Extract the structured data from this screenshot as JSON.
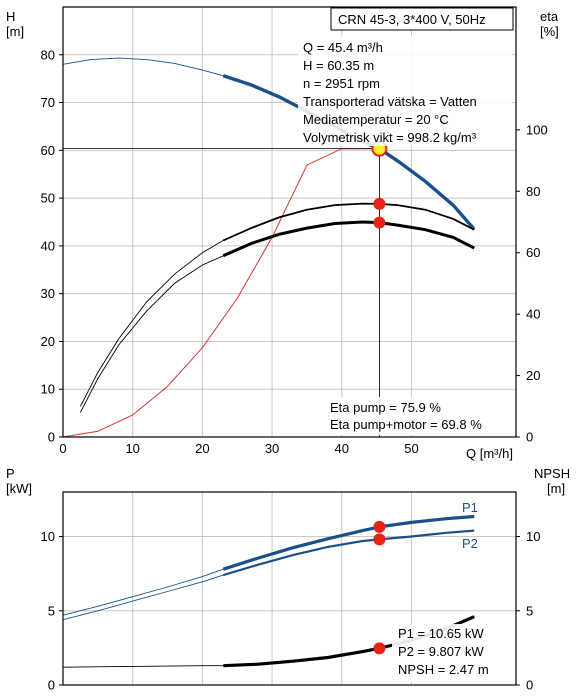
{
  "colors": {
    "head_curve": "#1a4f8a",
    "eta_curve": "#000000",
    "npsh_curve": "#000000",
    "system_curve": "#d9342b",
    "operating_point": "#e8231a",
    "operating_point_fill": "#ffee22",
    "grid": "#c8c8c8"
  },
  "chart_data": [
    {
      "type": "line",
      "title": "CRN 45-3, 3*400 V, 50Hz",
      "xlabel": "Q [m³/h]",
      "ylabel_left": [
        "H",
        "[m]"
      ],
      "ylabel_right": [
        "eta",
        "[%]"
      ],
      "xlim": [
        0,
        65
      ],
      "ylim_left": [
        0,
        90
      ],
      "ylim_right": [
        0,
        140
      ],
      "x_ticks": [
        0,
        10,
        20,
        30,
        40,
        50
      ],
      "y_left_ticks": [
        0,
        10,
        20,
        30,
        40,
        50,
        60,
        70,
        80
      ],
      "y_right_ticks": [
        0,
        20,
        40,
        60,
        80,
        100
      ],
      "grid": true,
      "info_lines": [
        "Q = 45.4 m³/h",
        "H = 60.35 m",
        "n = 2951 rpm",
        "Transporterad vätska = Vatten",
        "Mediatemperatur = 20 °C",
        "Volymetrisk vikt = 998.2 kg/m³"
      ],
      "efficiency_labels": [
        "Eta pump = 75.9 %",
        "Eta pump+motor = 69.8 %"
      ],
      "head_curve": {
        "axis": "left",
        "x": [
          0,
          4,
          8,
          12,
          16,
          20,
          23,
          27,
          31,
          35,
          39,
          43,
          45.4,
          48,
          52,
          56,
          59
        ],
        "y": [
          78,
          79,
          79.3,
          79,
          78.2,
          76.8,
          75.6,
          73.7,
          71.2,
          68.2,
          65,
          61.8,
          60.35,
          57.8,
          53.5,
          48.5,
          43.5
        ],
        "operating_range": [
          23,
          59
        ]
      },
      "eta_pump_curve": {
        "axis": "right",
        "x": [
          2.5,
          5,
          8,
          12,
          16,
          20,
          23,
          27,
          31,
          35,
          39,
          43,
          45.4,
          48,
          52,
          56,
          59
        ],
        "y": [
          10,
          21,
          32,
          44,
          53,
          60,
          64,
          68,
          71.5,
          74,
          75.5,
          76,
          75.9,
          75.5,
          74,
          71,
          67.5
        ],
        "operating_range": [
          23,
          59
        ]
      },
      "eta_total_curve": {
        "axis": "right",
        "x": [
          2.5,
          5,
          8,
          12,
          16,
          20,
          23,
          27,
          31,
          35,
          39,
          43,
          45.4,
          48,
          52,
          56,
          59
        ],
        "y": [
          8,
          19,
          30,
          41,
          50,
          56,
          59,
          63,
          66,
          68,
          69.5,
          70,
          69.8,
          69,
          67.5,
          65,
          61.5
        ],
        "operating_range": [
          23,
          59
        ]
      },
      "system_curve": {
        "axis": "left",
        "x": [
          0,
          5,
          10,
          15,
          20,
          25,
          30,
          35,
          40,
          45.4
        ],
        "y": [
          0,
          1.2,
          4.6,
          10.6,
          18.7,
          29,
          41.8,
          56.9,
          74.3,
          95.4
        ],
        "ylim_clip": [
          0,
          60.35
        ]
      },
      "operating_point": {
        "q": 45.4,
        "h": 60.35,
        "eta_pump": 75.9,
        "eta_total": 69.8
      }
    },
    {
      "type": "line",
      "xlabel": "",
      "ylabel_left": [
        "P",
        "[kW]"
      ],
      "ylabel_right": [
        "NPSH",
        "[m]"
      ],
      "xlim": [
        0,
        65
      ],
      "ylim_left": [
        0,
        13
      ],
      "ylim_right": [
        0,
        13
      ],
      "y_left_ticks": [
        0,
        5,
        10
      ],
      "y_right_ticks": [
        0,
        5,
        10
      ],
      "grid": true,
      "series": [
        {
          "name": "P1",
          "axis": "left",
          "x": [
            0,
            5,
            10,
            15,
            20,
            23,
            28,
            33,
            38,
            43,
            45.4,
            50,
            55,
            59
          ],
          "y": [
            4.7,
            5.3,
            5.95,
            6.6,
            7.3,
            7.8,
            8.55,
            9.25,
            9.85,
            10.4,
            10.65,
            10.95,
            11.2,
            11.35
          ],
          "operating_range": [
            23,
            59
          ]
        },
        {
          "name": "P2",
          "axis": "left",
          "x": [
            0,
            5,
            10,
            15,
            20,
            23,
            28,
            33,
            38,
            43,
            45.4,
            50,
            55,
            59
          ],
          "y": [
            4.4,
            5.0,
            5.65,
            6.3,
            6.95,
            7.4,
            8.1,
            8.75,
            9.3,
            9.7,
            9.807,
            10.0,
            10.25,
            10.4
          ],
          "operating_range": [
            23,
            59
          ]
        },
        {
          "name": "NPSH",
          "axis": "right",
          "x": [
            0,
            10,
            20,
            23,
            28,
            33,
            38,
            43,
            45.4,
            50,
            55,
            59
          ],
          "y": [
            1.2,
            1.25,
            1.3,
            1.3,
            1.4,
            1.6,
            1.85,
            2.25,
            2.47,
            3.0,
            3.8,
            4.6
          ],
          "operating_range": [
            23,
            59
          ]
        }
      ],
      "series_labels": [
        "P1",
        "P2"
      ],
      "value_labels": [
        "P1 = 10.65 kW",
        "P2 = 9.807 kW",
        "NPSH = 2.47 m"
      ],
      "operating_points": {
        "q": 45.4,
        "p1": 10.65,
        "p2": 9.807,
        "npsh": 2.47
      }
    }
  ]
}
